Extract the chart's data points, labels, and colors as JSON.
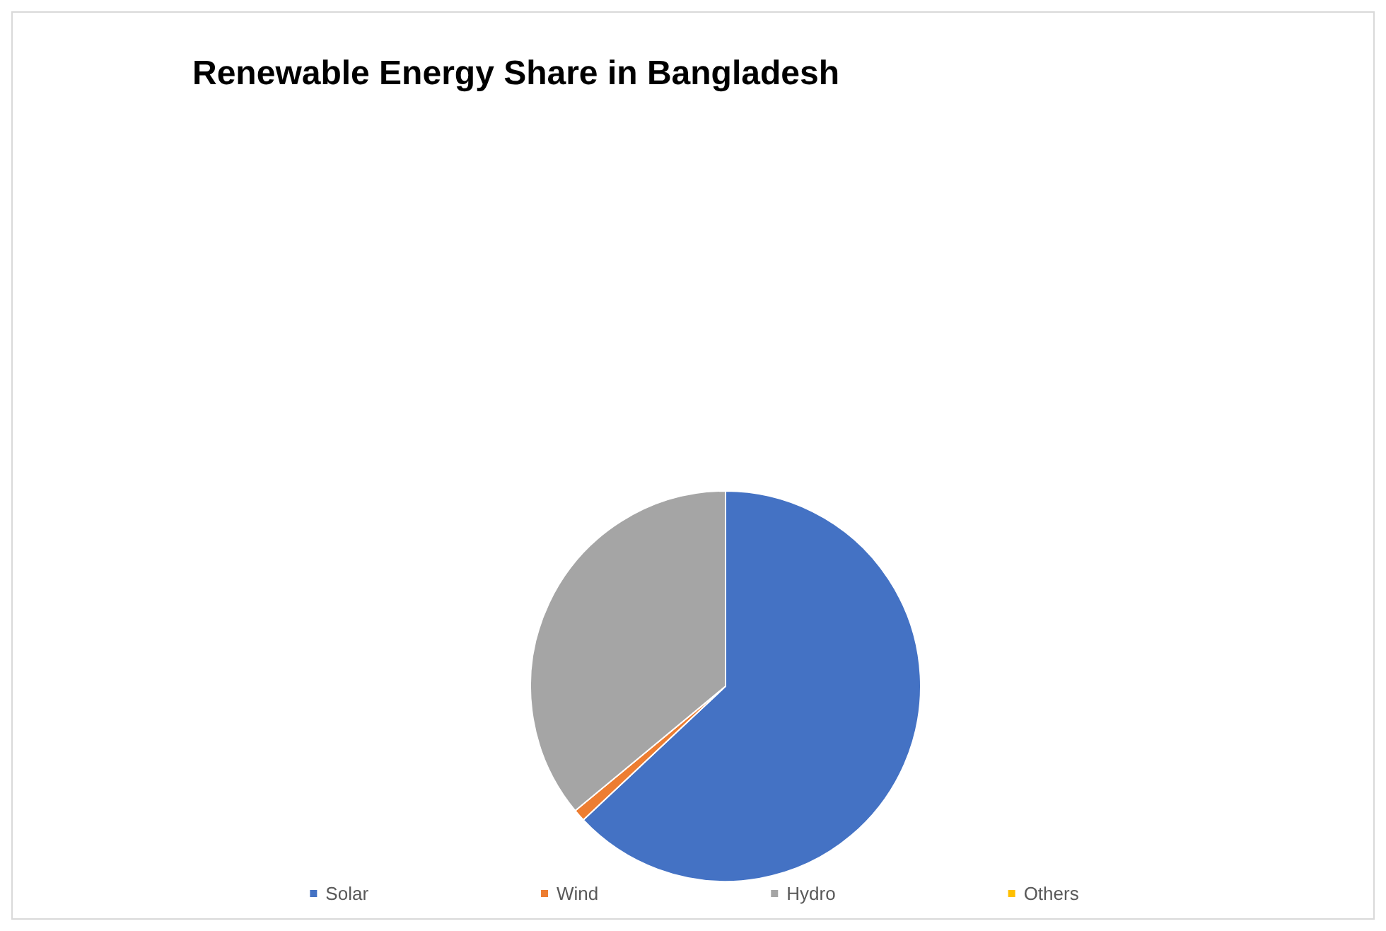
{
  "chart_data": {
    "type": "pie",
    "title": "Renewable Energy Share in Bangladesh",
    "categories": [
      "Solar",
      "Wind",
      "Hydro",
      "Others"
    ],
    "values": [
      63,
      1,
      36,
      0
    ],
    "colors": [
      "#4472c4",
      "#ed7d31",
      "#a5a5a5",
      "#ffc000"
    ],
    "legend": "bottom"
  }
}
